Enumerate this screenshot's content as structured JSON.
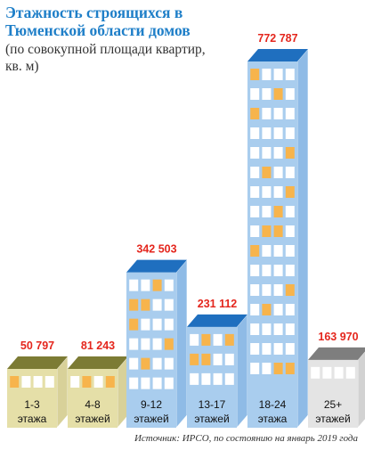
{
  "chart_data": {
    "type": "bar",
    "title": "Этажность строящихся в Тюменской области домов",
    "subtitle": "(по совокупной площади квартир, кв. м)",
    "categories": [
      {
        "line1": "1-3",
        "line2": "этажа"
      },
      {
        "line1": "4-8",
        "line2": "этажей"
      },
      {
        "line1": "9-12",
        "line2": "этажей"
      },
      {
        "line1": "13-17",
        "line2": "этажей"
      },
      {
        "line1": "18-24",
        "line2": "этажа"
      },
      {
        "line1": "25+",
        "line2": "этажей"
      }
    ],
    "values": [
      50797,
      81243,
      342503,
      231112,
      772787,
      163970
    ],
    "value_labels": [
      "50 797",
      "81 243",
      "342 503",
      "231 112",
      "772 787",
      "163 970"
    ],
    "building_colors": [
      {
        "body": "#e5dfa8",
        "roof": "#7c7b34",
        "side": "#d8d199"
      },
      {
        "body": "#e5dfa8",
        "roof": "#7c7b34",
        "side": "#d8d199"
      },
      {
        "body": "#a9cdee",
        "roof": "#1f6fbf",
        "side": "#8fbbe6"
      },
      {
        "body": "#a9cdee",
        "roof": "#1f6fbf",
        "side": "#8fbbe6"
      },
      {
        "body": "#a9cdee",
        "roof": "#1f6fbf",
        "side": "#8fbbe6"
      },
      {
        "body": "#e4e4e4",
        "roof": "#7e7e7e",
        "side": "#d2d2d2"
      }
    ],
    "value_label_color": "#e4261d",
    "window_color": "#ffffff",
    "lit_window_color": "#f7b44c"
  },
  "source": "Источник: ИРСО, по состоянию на январь 2019 года"
}
